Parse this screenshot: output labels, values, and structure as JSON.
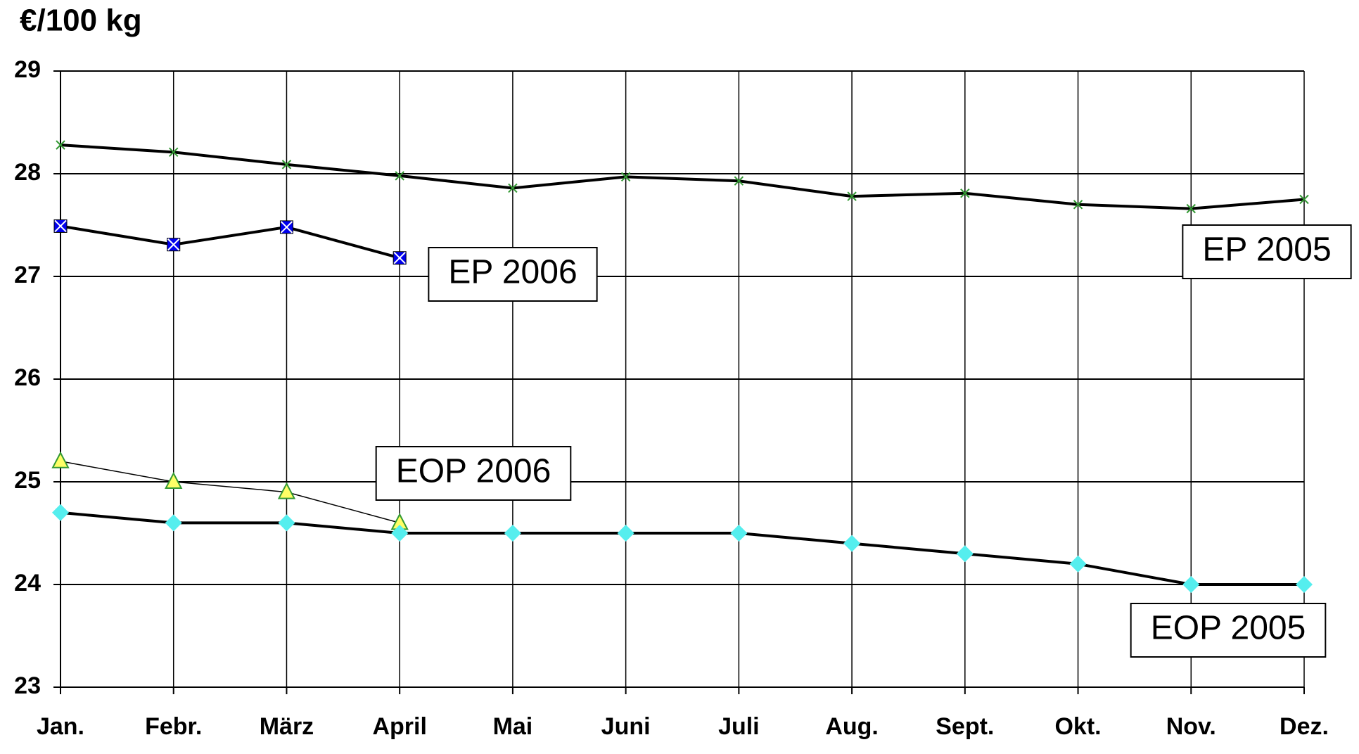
{
  "chart_data": {
    "type": "line",
    "y_label": "€/100 kg",
    "categories": [
      "Jan.",
      "Febr.",
      "März",
      "April",
      "Mai",
      "Juni",
      "Juli",
      "Aug.",
      "Sept.",
      "Okt.",
      "Nov.",
      "Dez."
    ],
    "ylim": [
      23,
      29
    ],
    "yticks": [
      23,
      24,
      25,
      26,
      27,
      28,
      29
    ],
    "grid": true,
    "series": [
      {
        "name": "EP 2005",
        "color": "#339933",
        "marker": "x",
        "values": [
          28.28,
          28.21,
          28.09,
          27.98,
          27.86,
          27.97,
          27.93,
          27.78,
          27.81,
          27.7,
          27.66,
          27.75
        ]
      },
      {
        "name": "EP 2006",
        "color": "#0000ee",
        "marker": "square-x",
        "values": [
          27.49,
          27.31,
          27.48,
          27.18,
          null,
          null,
          null,
          null,
          null,
          null,
          null,
          null
        ]
      },
      {
        "name": "EOP 2006",
        "color": "#ffff66",
        "marker": "triangle",
        "values": [
          25.2,
          25.0,
          24.9,
          24.6,
          null,
          null,
          null,
          null,
          null,
          null,
          null,
          null
        ]
      },
      {
        "name": "EOP 2005",
        "color": "#55eeee",
        "marker": "diamond",
        "values": [
          24.7,
          24.6,
          24.6,
          24.5,
          24.5,
          24.5,
          24.5,
          24.4,
          24.3,
          24.2,
          24.0,
          24.0
        ]
      }
    ]
  }
}
